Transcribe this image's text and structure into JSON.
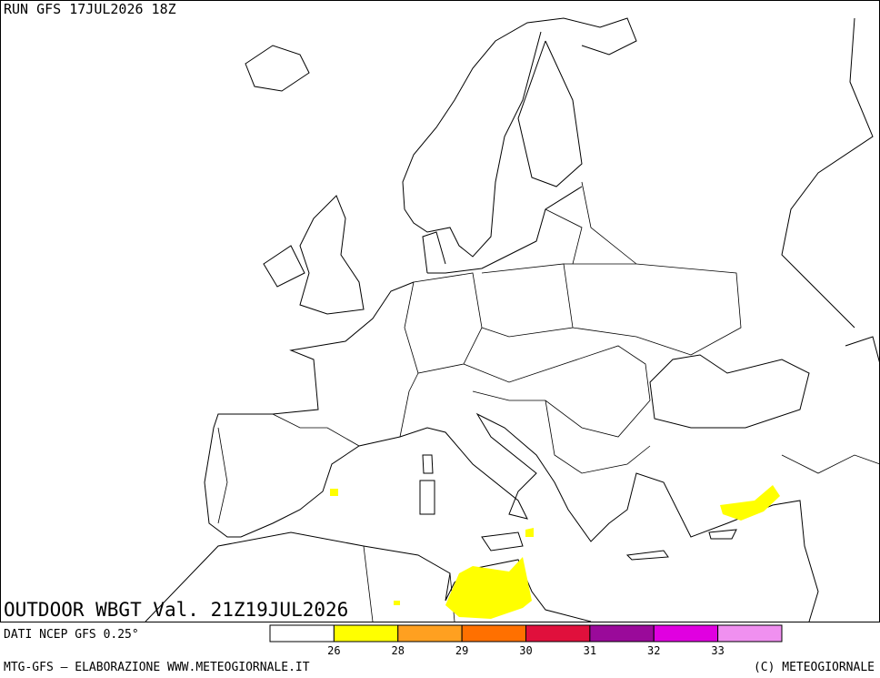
{
  "header": {
    "run": "RUN GFS 17JUL2026 18Z"
  },
  "title": "OUTDOOR WBGT Val. 21Z19JUL2026",
  "source": "DATI NCEP GFS 0.25°",
  "footer": {
    "left": "MTG-GFS — ELABORAZIONE WWW.METEOGIORNALE.IT",
    "right": "(C) METEOGIORNALE"
  },
  "legend": {
    "colors": [
      "#ffffff",
      "#ffff00",
      "#ffa020",
      "#ff7000",
      "#e0103c",
      "#9a0a9a",
      "#e000e0",
      "#f090f0"
    ],
    "ticks": [
      26,
      28,
      29,
      30,
      31,
      32,
      33
    ]
  }
}
